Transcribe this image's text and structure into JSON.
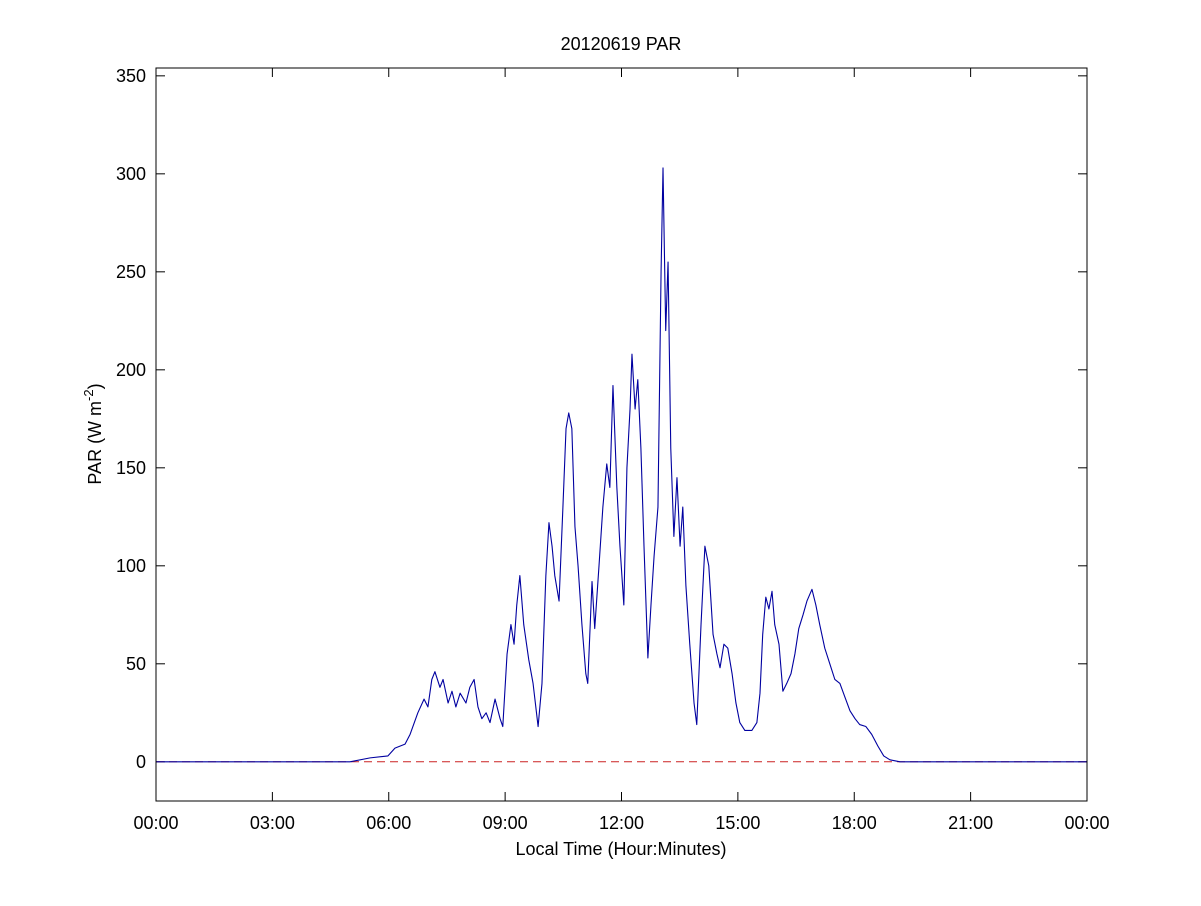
{
  "chart_data": {
    "type": "line",
    "title": "20120619 PAR",
    "xlabel": "Local Time (Hour:Minutes)",
    "ylabel": [
      "PAR (W m",
      "-2",
      ")"
    ],
    "xlim": [
      0,
      24
    ],
    "xticks": [
      {
        "value": 0,
        "label": "00:00"
      },
      {
        "value": 3,
        "label": "03:00"
      },
      {
        "value": 6,
        "label": "06:00"
      },
      {
        "value": 9,
        "label": "09:00"
      },
      {
        "value": 12,
        "label": "12:00"
      },
      {
        "value": 15,
        "label": "15:00"
      },
      {
        "value": 18,
        "label": "18:00"
      },
      {
        "value": 21,
        "label": "21:00"
      },
      {
        "value": 24,
        "label": "00:00"
      }
    ],
    "ylim": [
      -20,
      354
    ],
    "yticks": [
      0,
      50,
      100,
      150,
      200,
      250,
      300,
      350
    ],
    "hline": {
      "y": 0,
      "color": "#cc2222",
      "dashed": true
    },
    "series": [
      {
        "color": "#0000a0",
        "x": [
          0,
          5.0,
          5.52,
          5.98,
          6.16,
          6.42,
          6.55,
          6.75,
          6.91,
          7.01,
          7.11,
          7.19,
          7.32,
          7.4,
          7.53,
          7.63,
          7.73,
          7.84,
          7.99,
          8.09,
          8.2,
          8.3,
          8.4,
          8.51,
          8.61,
          8.74,
          8.87,
          8.94,
          9.05,
          9.15,
          9.23,
          9.3,
          9.38,
          9.48,
          9.61,
          9.72,
          9.85,
          9.95,
          10.05,
          10.13,
          10.21,
          10.28,
          10.39,
          10.49,
          10.57,
          10.64,
          10.72,
          10.8,
          10.88,
          10.98,
          11.08,
          11.13,
          11.24,
          11.31,
          11.42,
          11.52,
          11.62,
          11.7,
          11.78,
          11.88,
          11.96,
          12.06,
          12.14,
          12.22,
          12.27,
          12.35,
          12.42,
          12.5,
          12.58,
          12.68,
          12.76,
          12.84,
          12.94,
          13.02,
          13.07,
          13.14,
          13.2,
          13.27,
          13.35,
          13.43,
          13.51,
          13.58,
          13.66,
          13.76,
          13.87,
          13.94,
          14.05,
          14.15,
          14.25,
          14.36,
          14.46,
          14.54,
          14.64,
          14.74,
          14.85,
          14.95,
          15.05,
          15.18,
          15.36,
          15.49,
          15.57,
          15.64,
          15.72,
          15.8,
          15.88,
          15.95,
          16.06,
          16.16,
          16.26,
          16.37,
          16.47,
          16.57,
          16.68,
          16.78,
          16.91,
          17.01,
          17.11,
          17.24,
          17.37,
          17.5,
          17.63,
          17.76,
          17.89,
          18.02,
          18.14,
          18.3,
          18.45,
          18.61,
          18.76,
          18.92,
          19.18,
          24
        ],
        "values": [
          0,
          0,
          2,
          3,
          7,
          9,
          14,
          25,
          32,
          28,
          42,
          46,
          38,
          42,
          30,
          36,
          28,
          35,
          30,
          38,
          42,
          28,
          22,
          25,
          20,
          32,
          22,
          18,
          55,
          70,
          60,
          80,
          95,
          70,
          52,
          40,
          18,
          40,
          95,
          122,
          110,
          95,
          82,
          130,
          170,
          178,
          170,
          120,
          100,
          70,
          45,
          40,
          92,
          68,
          100,
          130,
          152,
          140,
          192,
          140,
          110,
          80,
          150,
          180,
          208,
          180,
          195,
          160,
          110,
          53,
          80,
          105,
          130,
          250,
          303,
          220,
          255,
          160,
          115,
          145,
          110,
          130,
          90,
          60,
          30,
          19,
          70,
          110,
          100,
          65,
          55,
          48,
          60,
          58,
          45,
          30,
          20,
          16,
          16,
          20,
          35,
          65,
          84,
          78,
          87,
          70,
          60,
          36,
          40,
          45,
          55,
          68,
          75,
          82,
          88,
          80,
          70,
          58,
          50,
          42,
          40,
          33,
          26,
          22,
          19,
          18,
          14,
          8,
          3,
          1,
          0,
          0
        ]
      }
    ]
  }
}
